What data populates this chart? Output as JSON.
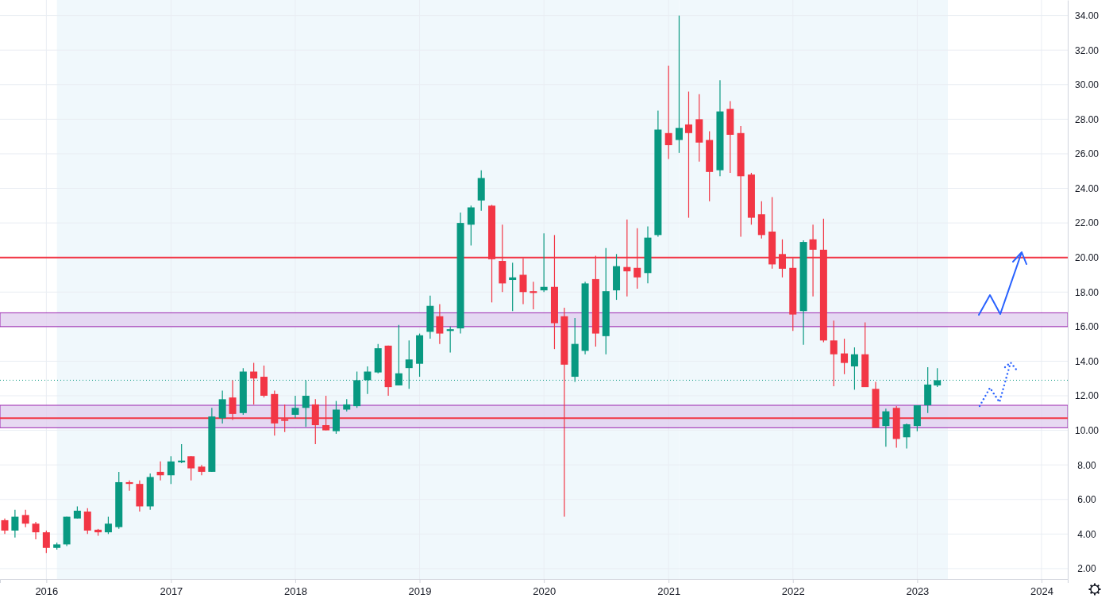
{
  "chart_data": {
    "type": "candlestick",
    "colors": [
      "#f23645",
      "#089981",
      "#f23645",
      "#f23645",
      "#f23645",
      "#089981",
      "#089981",
      "#089981",
      "#f23645",
      "#f23645",
      "#089981",
      "#089981",
      "#f23645",
      "#f23645",
      "#089981",
      "#f23645",
      "#089981",
      "#089981",
      "#f23645",
      "#f23645",
      "#089981",
      "#089981",
      "#f23645",
      "#089981",
      "#f23645",
      "#f23645",
      "#f23645",
      "#f23645",
      "#089981",
      "#089981",
      "#f23645",
      "#f23645",
      "#089981",
      "#089981",
      "#089981",
      "#089981",
      "#089981",
      "#f23645",
      "#089981",
      "#089981",
      "#089981",
      "#089981",
      "#f23645",
      "#089981",
      "#089981",
      "#089981",
      "#089981",
      "#f23645",
      "#f23645",
      "#089981",
      "#f23645",
      "#f23645",
      "#089981",
      "#f23645",
      "#f23645",
      "#089981",
      "#089981",
      "#f23645",
      "#089981",
      "#089981",
      "#f23645",
      "#f23645",
      "#089981",
      "#089981",
      "#f23645",
      "#089981",
      "#f23645",
      "#f23645",
      "#f23645",
      "#089981",
      "#f23645",
      "#f23645",
      "#f23645",
      "#f23645",
      "#f23645",
      "#f23645",
      "#f23645",
      "#089981",
      "#f23645",
      "#f23645",
      "#f23645",
      "#f23645",
      "#089981",
      "#f23645",
      "#f23645",
      "#089981",
      "#f23645",
      "#089981",
      "#089981",
      "#089981",
      "#089981"
    ],
    "x": [
      "2015-09",
      "2015-10",
      "2015-11",
      "2015-12",
      "2016-01",
      "2016-02",
      "2016-03",
      "2016-04",
      "2016-05",
      "2016-06",
      "2016-07",
      "2016-08",
      "2016-09",
      "2016-10",
      "2016-11",
      "2016-12",
      "2017-01",
      "2017-02",
      "2017-03",
      "2017-04",
      "2017-05",
      "2017-06",
      "2017-07",
      "2017-08",
      "2017-09",
      "2017-10",
      "2017-11",
      "2017-12",
      "2018-01",
      "2018-02",
      "2018-03",
      "2018-04",
      "2018-05",
      "2018-06",
      "2018-07",
      "2018-08",
      "2018-09",
      "2018-10",
      "2018-11",
      "2018-12",
      "2019-01",
      "2019-02",
      "2019-03",
      "2019-04",
      "2019-05",
      "2019-06",
      "2019-07",
      "2019-08",
      "2019-09",
      "2019-10",
      "2019-11",
      "2019-12",
      "2020-01",
      "2020-02",
      "2020-03",
      "2020-04",
      "2020-05",
      "2020-06",
      "2020-07",
      "2020-08",
      "2020-09",
      "2020-10",
      "2020-11",
      "2020-12",
      "2021-01",
      "2021-02",
      "2021-03",
      "2021-04",
      "2021-05",
      "2021-06",
      "2021-07",
      "2021-08",
      "2021-09",
      "2021-10",
      "2021-11",
      "2021-12",
      "2022-01",
      "2022-02",
      "2022-03",
      "2022-04",
      "2022-05",
      "2022-06",
      "2022-07",
      "2022-08",
      "2022-09",
      "2022-10",
      "2022-11",
      "2022-12",
      "2023-01",
      "2023-02",
      "2023-03"
    ],
    "ohlc": [
      [
        4.8,
        4.9,
        4.0,
        4.2
      ],
      [
        4.2,
        5.4,
        3.8,
        5.0
      ],
      [
        5.1,
        5.4,
        4.4,
        4.6
      ],
      [
        4.6,
        4.7,
        3.7,
        4.1
      ],
      [
        4.1,
        4.2,
        2.9,
        3.2
      ],
      [
        3.2,
        3.5,
        3.1,
        3.4
      ],
      [
        3.4,
        5.0,
        3.3,
        5.0
      ],
      [
        4.9,
        5.6,
        4.9,
        5.35
      ],
      [
        5.3,
        5.5,
        4.0,
        4.2
      ],
      [
        4.25,
        4.3,
        3.9,
        4.1
      ],
      [
        4.1,
        5.0,
        4.0,
        4.6
      ],
      [
        4.4,
        7.6,
        4.3,
        7.0
      ],
      [
        7.0,
        7.1,
        6.5,
        6.9
      ],
      [
        6.9,
        7.1,
        5.3,
        5.6
      ],
      [
        5.6,
        7.5,
        5.4,
        7.3
      ],
      [
        7.6,
        8.2,
        7.1,
        7.4
      ],
      [
        7.4,
        8.5,
        6.9,
        8.2
      ],
      [
        8.15,
        9.2,
        8.1,
        8.25
      ],
      [
        8.5,
        8.5,
        7.1,
        7.8
      ],
      [
        7.9,
        8.0,
        7.4,
        7.6
      ],
      [
        7.6,
        11.3,
        7.6,
        10.8
      ],
      [
        10.7,
        12.3,
        10.4,
        11.8
      ],
      [
        11.9,
        12.9,
        10.6,
        10.95
      ],
      [
        11.0,
        13.6,
        10.9,
        13.4
      ],
      [
        13.4,
        13.9,
        11.5,
        13.0
      ],
      [
        13.1,
        13.75,
        11.9,
        12.0
      ],
      [
        12.1,
        12.3,
        9.7,
        10.4
      ],
      [
        10.65,
        11.5,
        9.9,
        10.55
      ],
      [
        10.9,
        12.0,
        10.7,
        11.3
      ],
      [
        11.3,
        12.9,
        10.2,
        12.0
      ],
      [
        11.5,
        11.8,
        9.2,
        10.3
      ],
      [
        10.3,
        12.0,
        10.0,
        10.0
      ],
      [
        9.95,
        11.7,
        9.8,
        11.2
      ],
      [
        11.2,
        11.8,
        11.1,
        11.5
      ],
      [
        11.4,
        13.4,
        11.3,
        12.9
      ],
      [
        12.9,
        13.7,
        12.1,
        13.4
      ],
      [
        13.35,
        15.0,
        13.3,
        14.75
      ],
      [
        14.9,
        14.9,
        12.0,
        12.5
      ],
      [
        12.6,
        16.1,
        12.6,
        13.3
      ],
      [
        13.6,
        15.2,
        12.4,
        14.1
      ],
      [
        13.85,
        15.6,
        13.1,
        15.5
      ],
      [
        15.7,
        17.8,
        15.3,
        17.2
      ],
      [
        16.6,
        17.3,
        15.0,
        15.6
      ],
      [
        15.75,
        16.0,
        14.5,
        15.85
      ],
      [
        15.9,
        22.6,
        15.6,
        22.0
      ],
      [
        21.9,
        23.0,
        20.7,
        22.9
      ],
      [
        23.3,
        25.05,
        22.7,
        24.6
      ],
      [
        23.0,
        23.05,
        17.4,
        19.9
      ],
      [
        19.8,
        21.9,
        18.0,
        18.5
      ],
      [
        18.7,
        19.7,
        16.9,
        18.85
      ],
      [
        19.0,
        19.95,
        17.3,
        18.0
      ],
      [
        18.05,
        18.6,
        17.0,
        17.95
      ],
      [
        18.1,
        21.4,
        18.0,
        18.3
      ],
      [
        18.3,
        21.3,
        14.7,
        16.2
      ],
      [
        16.6,
        17.1,
        5.0,
        13.8
      ],
      [
        13.1,
        16.5,
        12.8,
        15.0
      ],
      [
        14.6,
        18.6,
        14.4,
        18.5
      ],
      [
        18.75,
        20.1,
        14.85,
        15.6
      ],
      [
        15.45,
        20.55,
        14.4,
        18.05
      ],
      [
        18.1,
        20.2,
        17.55,
        19.5
      ],
      [
        19.45,
        22.2,
        17.75,
        19.2
      ],
      [
        19.4,
        21.7,
        18.2,
        18.85
      ],
      [
        19.1,
        21.8,
        18.5,
        21.15
      ],
      [
        21.3,
        28.5,
        21.2,
        27.4
      ],
      [
        27.2,
        31.1,
        25.7,
        26.5
      ],
      [
        26.8,
        34.0,
        26.05,
        27.5
      ],
      [
        27.7,
        29.6,
        22.3,
        27.2
      ],
      [
        28.0,
        29.45,
        25.55,
        26.65
      ],
      [
        26.8,
        27.3,
        23.25,
        24.95
      ],
      [
        25.05,
        30.25,
        24.7,
        28.45
      ],
      [
        28.6,
        29.05,
        24.9,
        27.1
      ],
      [
        27.2,
        27.6,
        21.2,
        24.7
      ],
      [
        24.8,
        24.9,
        21.9,
        22.3
      ],
      [
        22.5,
        23.25,
        21.1,
        21.3
      ],
      [
        21.5,
        23.5,
        19.35,
        19.6
      ],
      [
        20.2,
        21.05,
        18.85,
        19.35
      ],
      [
        19.4,
        19.95,
        15.75,
        16.7
      ],
      [
        16.9,
        21.0,
        14.95,
        20.9
      ],
      [
        21.05,
        21.9,
        17.75,
        20.45
      ],
      [
        20.45,
        22.25,
        15.1,
        15.2
      ],
      [
        15.2,
        16.35,
        12.55,
        14.4
      ],
      [
        14.45,
        15.3,
        13.25,
        13.9
      ],
      [
        13.7,
        14.8,
        12.35,
        14.4
      ],
      [
        14.4,
        16.25,
        12.5,
        12.5
      ],
      [
        12.4,
        12.8,
        10.15,
        10.15
      ],
      [
        10.25,
        11.25,
        9.05,
        11.1
      ],
      [
        11.3,
        11.4,
        9.0,
        9.5
      ],
      [
        9.6,
        10.4,
        8.95,
        10.35
      ],
      [
        10.25,
        11.45,
        9.95,
        11.45
      ],
      [
        11.45,
        13.65,
        11.0,
        12.65
      ],
      [
        12.6,
        13.6,
        12.5,
        12.9
      ]
    ],
    "xlim": [
      "2015-08-18",
      "2024-03-18"
    ],
    "xticks": [
      "2016",
      "2017",
      "2018",
      "2019",
      "2020",
      "2021",
      "2022",
      "2023",
      "2024"
    ],
    "ylim": [
      1.4,
      34.9
    ],
    "yticks": [
      {
        "value": 2,
        "label": "2.00"
      },
      {
        "value": 4,
        "label": "4.00"
      },
      {
        "value": 6,
        "label": "6.00"
      },
      {
        "value": 8,
        "label": "8.00"
      },
      {
        "value": 10,
        "label": "10.00"
      },
      {
        "value": 12,
        "label": "12.00"
      },
      {
        "value": 14,
        "label": "14.00"
      },
      {
        "value": 16,
        "label": "16.00"
      },
      {
        "value": 18,
        "label": "18.00"
      },
      {
        "value": 20,
        "label": "20.00"
      },
      {
        "value": 22,
        "label": "22.00"
      },
      {
        "value": 24,
        "label": "24.00"
      },
      {
        "value": 26,
        "label": "26.00"
      },
      {
        "value": 28,
        "label": "28.00"
      },
      {
        "value": 30,
        "label": "30.00"
      },
      {
        "value": 32,
        "label": "32.00"
      },
      {
        "value": 34,
        "label": "34.00"
      }
    ],
    "grid": true,
    "bands": [
      {
        "axis": "x",
        "from": "2016-02",
        "to": "2021-02",
        "color": "#f0f8fc"
      },
      {
        "axis": "x",
        "from": "2021-02",
        "to": "2023-04",
        "color": "#f0f8fc"
      },
      {
        "axis": "y",
        "from": 16.0,
        "to": 16.8,
        "color": "#e1d0ef"
      },
      {
        "axis": "y",
        "from": 10.15,
        "to": 11.45,
        "color": "#e1d0ef"
      }
    ],
    "ref_lines": [
      {
        "axis": "y",
        "value": 20,
        "color": "#f23645",
        "line_style": "solid"
      },
      {
        "axis": "y",
        "value": 10.7,
        "color": "#f23645",
        "line_style": "solid"
      },
      {
        "axis": "y",
        "value": 12.9,
        "color": "#089981",
        "line_style": "dotted"
      }
    ]
  }
}
